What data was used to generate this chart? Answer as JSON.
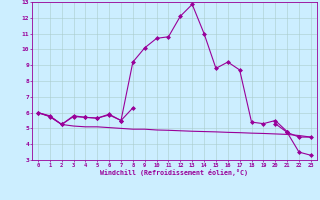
{
  "xlabel": "Windchill (Refroidissement éolien,°C)",
  "background_color": "#cceeff",
  "line_color": "#990099",
  "grid_color": "#aacccc",
  "x_values": [
    0,
    1,
    2,
    3,
    4,
    5,
    6,
    7,
    8,
    9,
    10,
    11,
    12,
    13,
    14,
    15,
    16,
    17,
    18,
    19,
    20,
    21,
    22,
    23
  ],
  "line1_y": [
    6.0,
    5.8,
    5.25,
    5.8,
    5.7,
    5.65,
    5.9,
    5.5,
    9.2,
    10.1,
    10.7,
    10.8,
    12.1,
    12.85,
    11.0,
    8.8,
    9.2,
    8.7,
    5.4,
    5.3,
    5.5,
    4.8,
    null,
    null
  ],
  "line2_y": [
    6.0,
    5.75,
    5.25,
    5.75,
    5.7,
    5.65,
    5.85,
    5.5,
    6.3,
    null,
    null,
    null,
    null,
    null,
    null,
    null,
    null,
    null,
    null,
    null,
    null,
    null,
    null,
    null
  ],
  "line3_y": [
    null,
    null,
    null,
    null,
    null,
    null,
    null,
    null,
    null,
    null,
    null,
    null,
    null,
    null,
    null,
    null,
    null,
    null,
    null,
    null,
    null,
    4.75,
    3.5,
    3.3
  ],
  "line4_y": [
    6.0,
    5.75,
    5.25,
    5.15,
    5.1,
    5.1,
    5.05,
    5.0,
    4.95,
    4.95,
    4.9,
    4.88,
    4.85,
    4.82,
    4.8,
    4.78,
    4.75,
    4.73,
    4.7,
    4.68,
    4.65,
    4.62,
    4.55,
    4.45
  ],
  "line5_y": [
    null,
    null,
    null,
    null,
    null,
    null,
    null,
    null,
    null,
    null,
    null,
    null,
    null,
    null,
    null,
    null,
    null,
    null,
    null,
    null,
    5.3,
    4.75,
    4.45,
    4.45
  ],
  "ylim": [
    3,
    13
  ],
  "xlim": [
    -0.5,
    23.5
  ],
  "yticks": [
    3,
    4,
    5,
    6,
    7,
    8,
    9,
    10,
    11,
    12,
    13
  ],
  "xticks": [
    0,
    1,
    2,
    3,
    4,
    5,
    6,
    7,
    8,
    9,
    10,
    11,
    12,
    13,
    14,
    15,
    16,
    17,
    18,
    19,
    20,
    21,
    22,
    23
  ]
}
